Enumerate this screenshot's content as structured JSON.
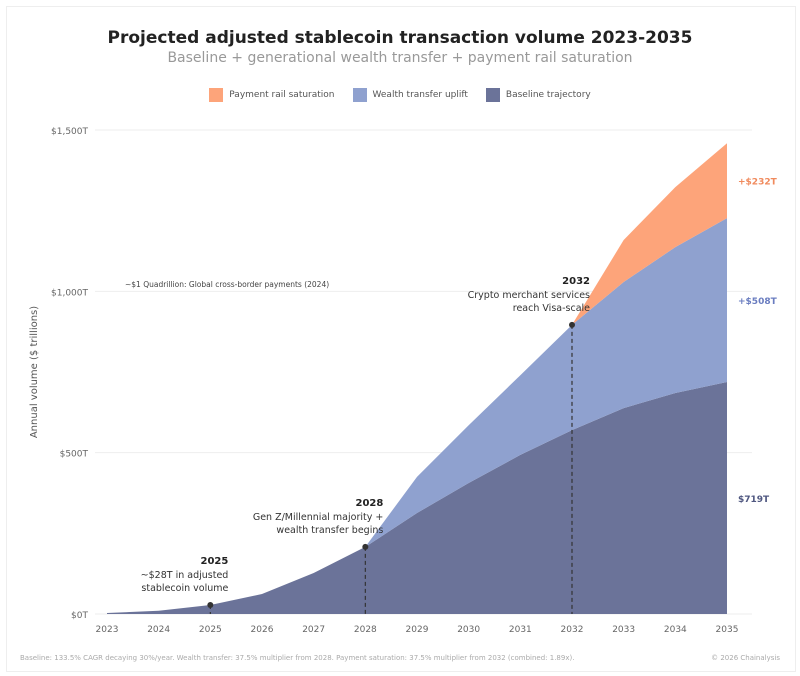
{
  "chart_data": {
    "type": "area",
    "stacked": true,
    "title": "Projected adjusted stablecoin transaction volume 2023-2035",
    "subtitle": "Baseline + generational wealth transfer + payment rail saturation",
    "ylabel": "Annual volume ($ trillions)",
    "xlabel": "",
    "x": [
      2023,
      2024,
      2025,
      2026,
      2027,
      2028,
      2029,
      2030,
      2031,
      2032,
      2033,
      2034,
      2035
    ],
    "ylim": [
      0,
      1500
    ],
    "yticks": [
      0,
      500,
      1000,
      1500
    ],
    "ytick_labels": [
      "$0T",
      "$500T",
      "$1,000T",
      "$1,500T"
    ],
    "grid": true,
    "legend_placement": "top",
    "series": [
      {
        "name": "Baseline trajectory",
        "color": "#6b7399",
        "values": [
          3,
          10,
          28,
          62,
          127,
          208,
          313,
          406,
          493,
          570,
          638,
          685,
          719
        ]
      },
      {
        "name": "Wealth transfer uplift",
        "color": "#8fa1cf",
        "values": [
          0,
          0,
          0,
          0,
          0,
          0,
          112,
          179,
          247,
          326,
          391,
          452,
          508
        ]
      },
      {
        "name": "Payment rail saturation",
        "color": "#fda47a",
        "values": [
          0,
          0,
          0,
          0,
          0,
          0,
          0,
          0,
          0,
          0,
          130,
          186,
          232
        ]
      }
    ],
    "legend_order": [
      "Payment rail saturation",
      "Wealth transfer uplift",
      "Baseline trajectory"
    ],
    "end_labels": [
      {
        "text": "+$232T",
        "color": "#f08a5d"
      },
      {
        "text": "+$508T",
        "color": "#6a7dc0"
      },
      {
        "text": "$719T",
        "color": "#4f5780"
      }
    ],
    "reference_line": {
      "value": 1000,
      "label": "~$1 Quadrillion: Global cross-border payments (2024)"
    },
    "annotations": [
      {
        "year": 2025,
        "value": 28,
        "title": "2025",
        "lines": [
          "~$28T in adjusted",
          "stablecoin volume"
        ]
      },
      {
        "year": 2028,
        "value": 208,
        "title": "2028",
        "lines": [
          "Gen Z/Millennial majority +",
          "wealth transfer begins"
        ]
      },
      {
        "year": 2032,
        "value": 896,
        "title": "2032",
        "lines": [
          "Crypto merchant services",
          "reach Visa-scale"
        ]
      }
    ]
  },
  "footer": {
    "note": "Baseline: 133.5% CAGR decaying 30%/year. Wealth transfer: 37.5% multiplier from 2028. Payment saturation: 37.5% multiplier from 2032 (combined: 1.89x).",
    "credit": "© 2026 Chainalysis"
  }
}
